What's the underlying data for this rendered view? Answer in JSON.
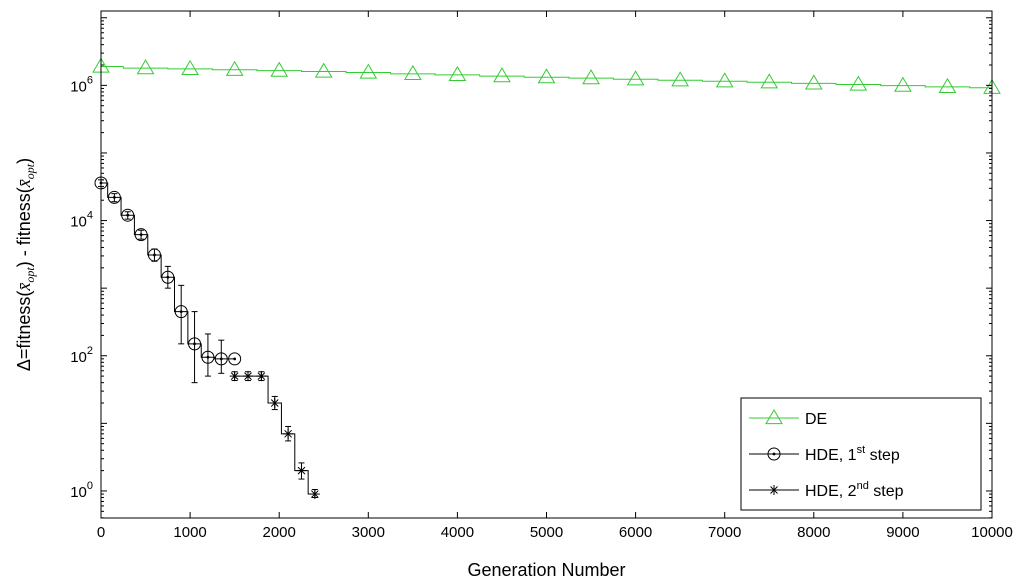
{
  "chart_data": {
    "type": "line",
    "xlabel": "Generation Number",
    "ylabel": "Δ=fitness(x̄opt) - fitness(x̄opt)",
    "ylabel_parts": {
      "prefix": "Δ=fitness(",
      "var": "x̄",
      "sub": "opt",
      "mid": ") - fitness(",
      "var2": "x̄",
      "sub2": "opt",
      "suffix": ")"
    },
    "xlim": [
      0,
      10000
    ],
    "ylim_log10": [
      -0.4,
      7.1
    ],
    "yscale": "log",
    "x_ticks": [
      "0",
      "1000",
      "2000",
      "3000",
      "4000",
      "5000",
      "6000",
      "7000",
      "8000",
      "9000",
      "10000"
    ],
    "y_ticks": [
      {
        "base": "10",
        "exp": "0",
        "log10": 0
      },
      {
        "base": "10",
        "exp": "2",
        "log10": 2
      },
      {
        "base": "10",
        "exp": "4",
        "log10": 4
      },
      {
        "base": "10",
        "exp": "6",
        "log10": 6
      }
    ],
    "legend_position": "bottom-right",
    "series": [
      {
        "name": "DE",
        "color": "#33cc33",
        "marker": "triangle",
        "x": [
          0,
          500,
          1000,
          1500,
          2000,
          2500,
          3000,
          3500,
          4000,
          4500,
          5000,
          5500,
          6000,
          6500,
          7000,
          7500,
          8000,
          8500,
          9000,
          9500,
          10000
        ],
        "y": [
          1900000,
          1800000,
          1750000,
          1700000,
          1650000,
          1600000,
          1550000,
          1480000,
          1430000,
          1370000,
          1320000,
          1280000,
          1230000,
          1190000,
          1150000,
          1110000,
          1070000,
          1030000,
          990000,
          950000,
          920000
        ]
      },
      {
        "name": "HDE, 1st step",
        "name_parts": {
          "prefix": "HDE, 1",
          "sup": "st",
          "suffix": " step"
        },
        "color": "#000000",
        "marker": "circle",
        "x": [
          0,
          150,
          300,
          450,
          600,
          750,
          900,
          1050,
          1200,
          1350,
          1500
        ],
        "y": [
          36000,
          22000,
          12000,
          6200,
          3100,
          1450,
          450,
          150,
          95,
          90,
          90
        ],
        "err_low": [
          32000,
          19000,
          10500,
          5300,
          2500,
          1000,
          150,
          40,
          50,
          55,
          null
        ],
        "err_high": [
          40000,
          25000,
          13500,
          7200,
          3800,
          2100,
          1100,
          450,
          210,
          170,
          null
        ]
      },
      {
        "name": "HDE, 2nd step",
        "name_parts": {
          "prefix": "HDE, 2",
          "sup": "nd",
          "suffix": " step"
        },
        "color": "#000000",
        "marker": "star",
        "x": [
          1500,
          1650,
          1800,
          1950,
          2100,
          2250,
          2400
        ],
        "y": [
          50,
          50,
          50,
          20,
          7,
          2,
          0.9
        ],
        "err_low": [
          43,
          43,
          43,
          16,
          5.5,
          1.5,
          0.8
        ],
        "err_high": [
          58,
          58,
          58,
          25,
          9,
          2.6,
          1.05
        ]
      }
    ]
  }
}
